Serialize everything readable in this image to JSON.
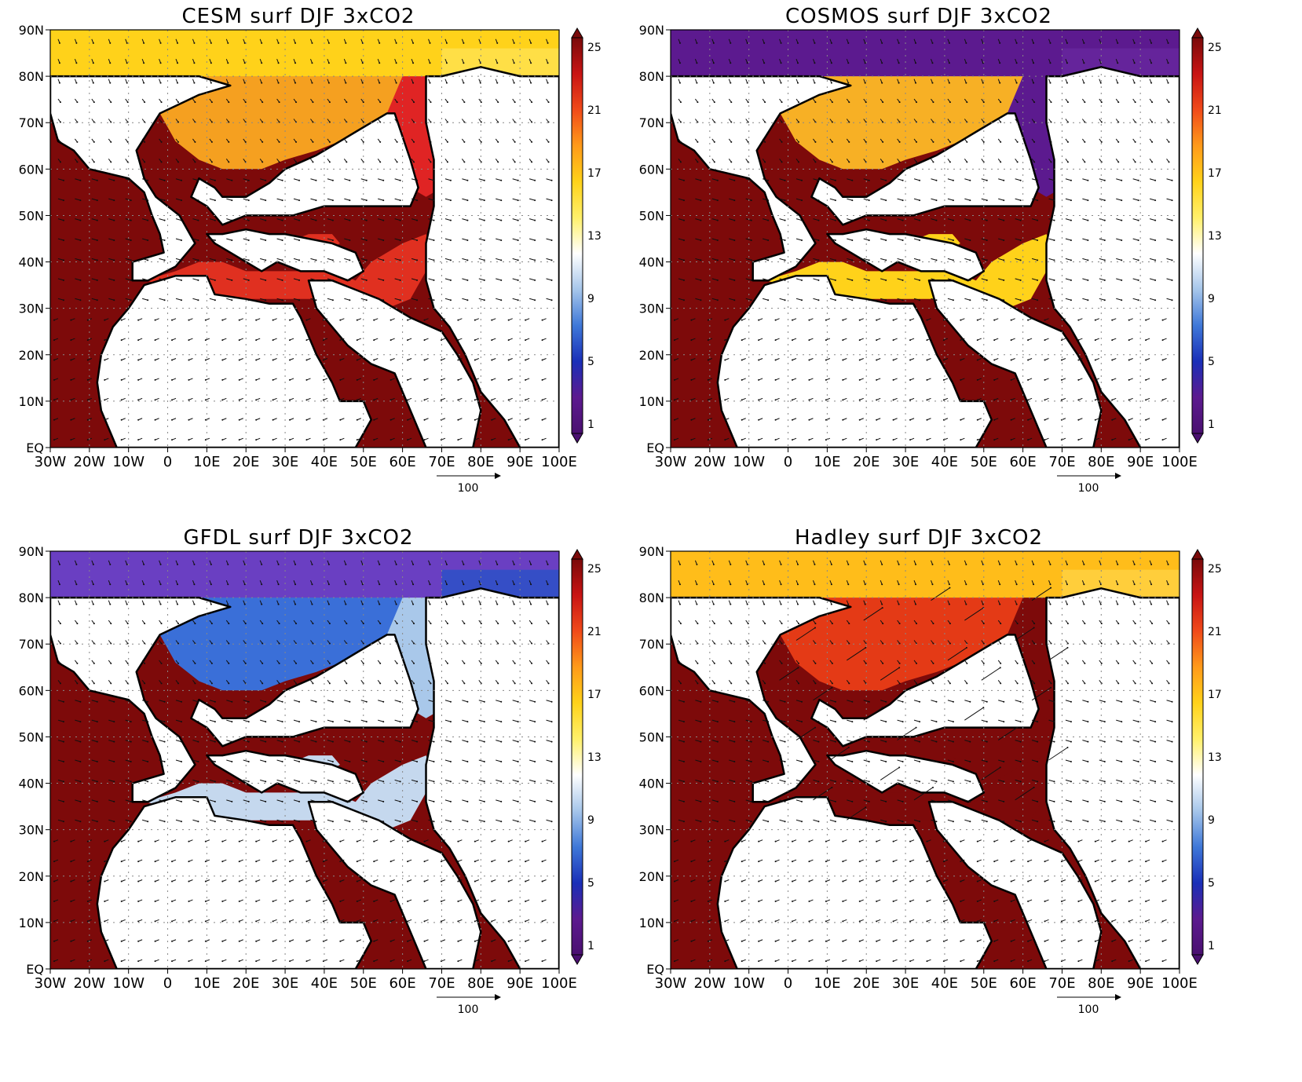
{
  "panels": [
    {
      "title": "CESM surf DJF 3xCO2",
      "arctic_color": "#ffd21a",
      "arctic_alt_color": "#ffe45a",
      "north_sea_color": "#f5a020",
      "east_sea_color": "#e02424",
      "med_color": "#e03020",
      "land_sea_color": "#7d0a0a"
    },
    {
      "title": "COSMOS surf DJF 3xCO2",
      "arctic_color": "#5c1a8f",
      "arctic_alt_color": "#6a2aa0",
      "north_sea_color": "#f7b025",
      "east_sea_color": "#5c1a8f",
      "med_color": "#ffd21a",
      "land_sea_color": "#7d0a0a"
    },
    {
      "title": "GFDL surf DJF 3xCO2",
      "arctic_color": "#6a3fc2",
      "arctic_alt_color": "#1f55c8",
      "north_sea_color": "#3a6fd8",
      "east_sea_color": "#a9c8ea",
      "med_color": "#c5d8ee",
      "land_sea_color": "#7d0a0a"
    },
    {
      "title": "Hadley surf DJF 3xCO2",
      "arctic_color": "#ffbd1a",
      "arctic_alt_color": "#ffd64a",
      "north_sea_color": "#e43a16",
      "east_sea_color": "#7d0a0a",
      "med_color": "#7d0a0a",
      "land_sea_color": "#7d0a0a"
    }
  ],
  "lat_labels": [
    "90N",
    "80N",
    "70N",
    "60N",
    "50N",
    "40N",
    "30N",
    "20N",
    "10N",
    "EQ"
  ],
  "lon_labels": [
    "30W",
    "20W",
    "10W",
    "0",
    "10E",
    "20E",
    "30E",
    "40E",
    "50E",
    "60E",
    "70E",
    "80E",
    "90E",
    "100E"
  ],
  "colorbar": {
    "ticks": [
      "25",
      "21",
      "17",
      "13",
      "9",
      "5",
      "1"
    ],
    "stops": [
      "#7a0a0a",
      "#c81414",
      "#f04a1a",
      "#ff9a1a",
      "#ffd21a",
      "#fff06a",
      "#ffffff",
      "#a6c6ea",
      "#3f78d8",
      "#1a2fb8",
      "#5c1a8f",
      "#4a1070"
    ]
  },
  "vector_reference": "100"
}
